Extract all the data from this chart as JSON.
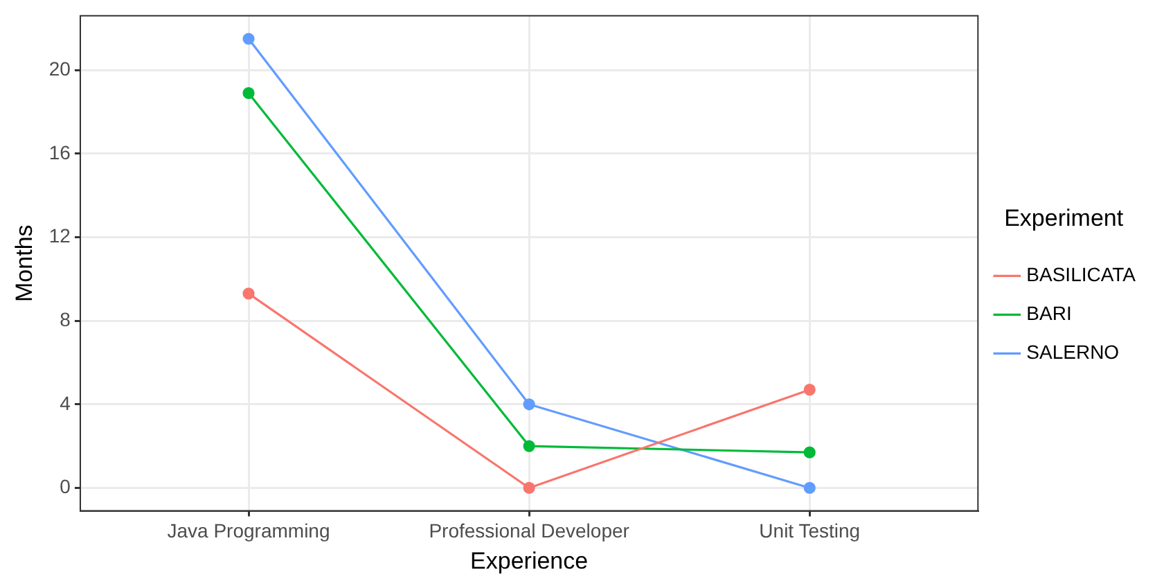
{
  "chart_data": {
    "type": "line",
    "xlabel": "Experience",
    "ylabel": "Months",
    "legend_title": "Experiment",
    "categories": [
      "Java Programming",
      "Professional Developer",
      "Unit Testing"
    ],
    "series": [
      {
        "name": "BASILICATA",
        "color": "#f8766d",
        "values": [
          9.3,
          0,
          4.7
        ]
      },
      {
        "name": "BARI",
        "color": "#00ba38",
        "values": [
          18.9,
          2.0,
          1.7
        ]
      },
      {
        "name": "SALERNO",
        "color": "#619cff",
        "values": [
          21.5,
          4.0,
          0
        ]
      }
    ],
    "ylim": [
      -1.1,
      22.6
    ],
    "yticks": [
      0,
      4,
      8,
      12,
      16,
      20
    ],
    "grid": true,
    "legend": "right",
    "marker": "circle",
    "line_style": "solid"
  }
}
